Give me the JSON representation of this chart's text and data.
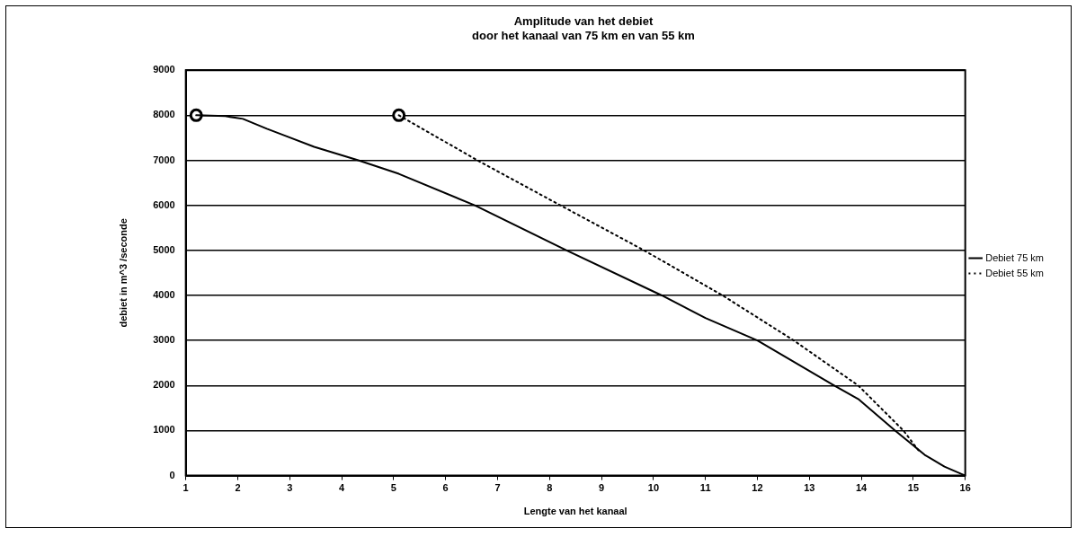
{
  "chart_data": {
    "type": "line",
    "title": [
      "Amplitude van het debiet",
      "door het kanaal van 75 km en van 55 km"
    ],
    "xlabel": "Lengte van het kanaal",
    "ylabel": "debiet in m^3 /seconde",
    "xlim": [
      1,
      16
    ],
    "xticks": [
      1,
      2,
      3,
      4,
      5,
      6,
      7,
      8,
      9,
      10,
      11,
      12,
      13,
      14,
      15,
      16
    ],
    "ylim": [
      0,
      9000
    ],
    "yticks": [
      0,
      1000,
      2000,
      3000,
      4000,
      5000,
      6000,
      7000,
      8000,
      9000
    ],
    "grid": "y",
    "legend": "right",
    "series": [
      {
        "name": "Debiet 75 km",
        "color": "#000000",
        "line_style": "solid",
        "marker": "none",
        "x": [
          1.2,
          1.76,
          2.1,
          2.56,
          2.9,
          3.47,
          4.32,
          5.1,
          6.56,
          8.33,
          10.16,
          11,
          12,
          13.48,
          13.94,
          14.65,
          15.22,
          15.6,
          16
        ],
        "values": [
          8000,
          7980,
          7920,
          7700,
          7550,
          7300,
          7000,
          6700,
          6000,
          5000,
          4000,
          3500,
          3000,
          2000,
          1700,
          1000,
          460,
          200,
          0
        ]
      },
      {
        "name": "Debiet 55 km",
        "color": "#000000",
        "line_style": "dotted",
        "marker": "none",
        "x": [
          5.1,
          6.61,
          8.21,
          9.82,
          11.33,
          12.7,
          13.94,
          14.81,
          15.1
        ],
        "values": [
          8000,
          7000,
          6000,
          5000,
          4000,
          3000,
          2000,
          1000,
          560
        ]
      },
      {
        "type": "scatter",
        "color": "#000000",
        "marker": "circle",
        "x": [
          1.2,
          5.1
        ],
        "values": [
          8000,
          8000
        ]
      }
    ]
  }
}
